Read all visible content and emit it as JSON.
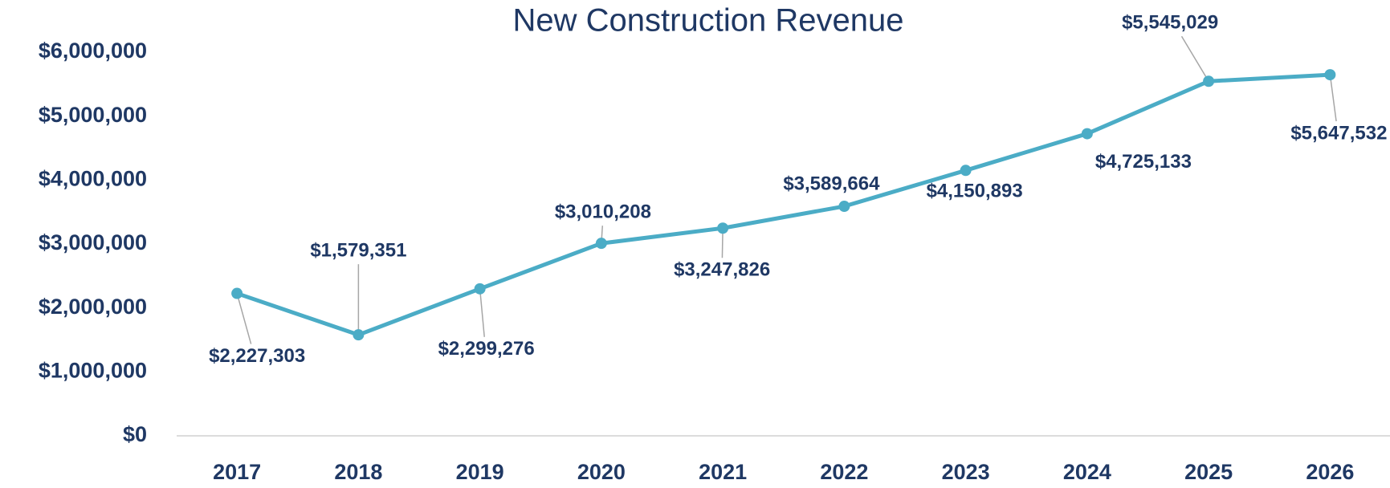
{
  "chart_data": {
    "type": "line",
    "title": "New Construction Revenue",
    "categories": [
      "2017",
      "2018",
      "2019",
      "2020",
      "2021",
      "2022",
      "2023",
      "2024",
      "2025",
      "2026"
    ],
    "series": [
      {
        "name": "New Construction Revenue",
        "color": "#4bacc6",
        "values": [
          2227303,
          1579351,
          2299276,
          3010208,
          3247826,
          3589664,
          4150893,
          4725133,
          5545029,
          5647532
        ],
        "value_labels": [
          "$2,227,303",
          "$1,579,351",
          "$2,299,276",
          "$3,010,208",
          "$3,247,826",
          "$3,589,664",
          "$4,150,893",
          "$4,725,133",
          "$5,545,029",
          "$5,647,532"
        ]
      }
    ],
    "ylim": [
      0,
      6000000
    ],
    "yticks": [
      {
        "value": 0,
        "label": "$0"
      },
      {
        "value": 1000000,
        "label": "$1,000,000"
      },
      {
        "value": 2000000,
        "label": "$2,000,000"
      },
      {
        "value": 3000000,
        "label": "$3,000,000"
      },
      {
        "value": 4000000,
        "label": "$4,000,000"
      },
      {
        "value": 5000000,
        "label": "$5,000,000"
      },
      {
        "value": 6000000,
        "label": "$6,000,000"
      }
    ],
    "grid": false
  }
}
